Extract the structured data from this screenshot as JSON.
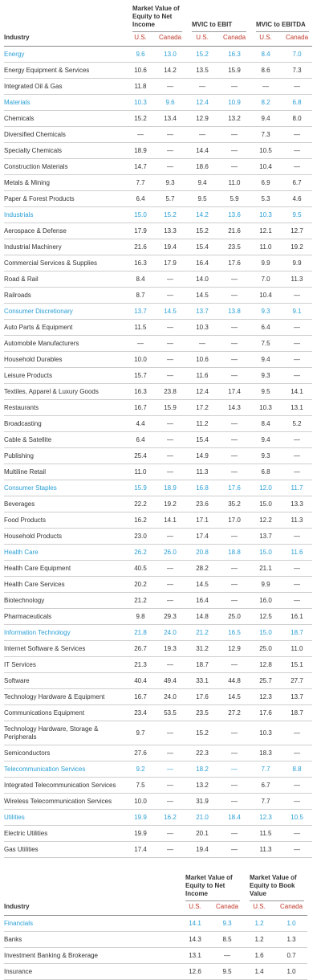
{
  "tables": [
    {
      "header": {
        "industry": "Industry",
        "groups": [
          {
            "title": "Market Value of Equity to Net Income",
            "columns": [
              "U.S.",
              "Canada"
            ]
          },
          {
            "title": "MVIC to EBIT",
            "columns": [
              "U.S.",
              "Canada"
            ]
          },
          {
            "title": "MVIC to EBITDA",
            "columns": [
              "U.S.",
              "Canada"
            ]
          }
        ]
      },
      "highlight_color": "#2a9fd6",
      "rows": [
        {
          "cells": [
            "Energy",
            "9.6",
            "13.0",
            "15.2",
            "16.3",
            "8.4",
            "7.0"
          ],
          "highlight": true
        },
        {
          "cells": [
            "Energy Equipment & Services",
            "10.6",
            "14.2",
            "13.5",
            "15.9",
            "8.6",
            "7.3"
          ]
        },
        {
          "cells": [
            "Integrated Oil & Gas",
            "11.8",
            "—",
            "—",
            "—",
            "—",
            "—"
          ]
        },
        {
          "cells": [
            "Materials",
            "10.3",
            "9.6",
            "12.4",
            "10.9",
            "8.2",
            "6.8"
          ],
          "highlight": true
        },
        {
          "cells": [
            "Chemicals",
            "15.2",
            "13.4",
            "12.9",
            "13.2",
            "9.4",
            "8.0"
          ]
        },
        {
          "cells": [
            "Diversified Chemicals",
            "—",
            "—",
            "—",
            "—",
            "7.3",
            "—"
          ]
        },
        {
          "cells": [
            "Specialty Chemicals",
            "18.9",
            "—",
            "14.4",
            "—",
            "10.5",
            "—"
          ]
        },
        {
          "cells": [
            "Construction Materials",
            "14.7",
            "—",
            "18.6",
            "—",
            "10.4",
            "—"
          ]
        },
        {
          "cells": [
            "Metals & Mining",
            "7.7",
            "9.3",
            "9.4",
            "11.0",
            "6.9",
            "6.7"
          ]
        },
        {
          "cells": [
            "Paper & Forest Products",
            "6.4",
            "5.7",
            "9.5",
            "5.9",
            "5.3",
            "4.6"
          ]
        },
        {
          "cells": [
            "Industrials",
            "15.0",
            "15.2",
            "14.2",
            "13.6",
            "10.3",
            "9.5"
          ],
          "highlight": true
        },
        {
          "cells": [
            "Aerospace & Defense",
            "17.9",
            "13.3",
            "15.2",
            "21.6",
            "12.1",
            "12.7"
          ]
        },
        {
          "cells": [
            "Industrial Machinery",
            "21.6",
            "19.4",
            "15.4",
            "23.5",
            "11.0",
            "19.2"
          ]
        },
        {
          "cells": [
            "Commercial Services & Supplies",
            "16.3",
            "17.9",
            "16.4",
            "17.6",
            "9.9",
            "9.9"
          ]
        },
        {
          "cells": [
            "Road & Rail",
            "8.4",
            "—",
            "14.0",
            "—",
            "7.0",
            "11.3"
          ]
        },
        {
          "cells": [
            "Railroads",
            "8.7",
            "—",
            "14.5",
            "—",
            "10.4",
            "—"
          ]
        },
        {
          "cells": [
            "Consumer Discretionary",
            "13.7",
            "14.5",
            "13.7",
            "13.8",
            "9.3",
            "9.1"
          ],
          "highlight": true
        },
        {
          "cells": [
            "Auto Parts & Equipment",
            "11.5",
            "—",
            "10.3",
            "—",
            "6.4",
            "—"
          ]
        },
        {
          "cells": [
            "Automobile Manufacturers",
            "—",
            "—",
            "—",
            "—",
            "7.5",
            "—"
          ]
        },
        {
          "cells": [
            "Household Durables",
            "10.0",
            "—",
            "10.6",
            "—",
            "9.4",
            "—"
          ]
        },
        {
          "cells": [
            "Leisure Products",
            "15.7",
            "—",
            "11.6",
            "—",
            "9.3",
            "—"
          ]
        },
        {
          "cells": [
            "Textiles, Apparel & Luxury Goods",
            "16.3",
            "23.8",
            "12.4",
            "17.4",
            "9.5",
            "14.1"
          ]
        },
        {
          "cells": [
            "Restaurants",
            "16.7",
            "15.9",
            "17.2",
            "14.3",
            "10.3",
            "13.1"
          ]
        },
        {
          "cells": [
            "Broadcasting",
            "4.4",
            "—",
            "11.2",
            "—",
            "8.4",
            "5.2"
          ]
        },
        {
          "cells": [
            "Cable & Satellite",
            "6.4",
            "—",
            "15.4",
            "—",
            "9.4",
            "—"
          ]
        },
        {
          "cells": [
            "Publishing",
            "25.4",
            "—",
            "14.9",
            "—",
            "9.3",
            "—"
          ]
        },
        {
          "cells": [
            "Multiline Retail",
            "11.0",
            "—",
            "11.3",
            "—",
            "6.8",
            "—"
          ]
        },
        {
          "cells": [
            "Consumer Staples",
            "15.9",
            "18.9",
            "16.8",
            "17.6",
            "12.0",
            "11.7"
          ],
          "highlight": true
        },
        {
          "cells": [
            "Beverages",
            "22.2",
            "19.2",
            "23.6",
            "35.2",
            "15.0",
            "13.3"
          ]
        },
        {
          "cells": [
            "Food Products",
            "16.2",
            "14.1",
            "17.1",
            "17.0",
            "12.2",
            "11.3"
          ]
        },
        {
          "cells": [
            "Household Products",
            "23.0",
            "—",
            "17.4",
            "—",
            "13.7",
            "—"
          ]
        },
        {
          "cells": [
            "Health Care",
            "26.2",
            "26.0",
            "20.8",
            "18.8",
            "15.0",
            "11.6"
          ],
          "highlight": true
        },
        {
          "cells": [
            "Health Care Equipment",
            "40.5",
            "—",
            "28.2",
            "—",
            "21.1",
            "—"
          ]
        },
        {
          "cells": [
            "Health Care Services",
            "20.2",
            "—",
            "14.5",
            "—",
            "9.9",
            "—"
          ]
        },
        {
          "cells": [
            "Biotechnology",
            "21.2",
            "—",
            "16.4",
            "—",
            "16.0",
            "—"
          ]
        },
        {
          "cells": [
            "Pharmaceuticals",
            "9.8",
            "29.3",
            "14.8",
            "25.0",
            "12.5",
            "16.1"
          ]
        },
        {
          "cells": [
            "Information Technology",
            "21.8",
            "24.0",
            "21.2",
            "16.5",
            "15.0",
            "18.7"
          ],
          "highlight": true
        },
        {
          "cells": [
            "Internet Software & Services",
            "26.7",
            "19.3",
            "31.2",
            "12.9",
            "25.0",
            "11.0"
          ]
        },
        {
          "cells": [
            "IT Services",
            "21.3",
            "—",
            "18.7",
            "—",
            "12.8",
            "15.1"
          ]
        },
        {
          "cells": [
            "Software",
            "40.4",
            "49.4",
            "33.1",
            "44.8",
            "25.7",
            "27.7"
          ]
        },
        {
          "cells": [
            "Technology Hardware & Equipment",
            "16.7",
            "24.0",
            "17.6",
            "14.5",
            "12.3",
            "13.7"
          ]
        },
        {
          "cells": [
            "Communications Equipment",
            "23.4",
            "53.5",
            "23.5",
            "27.2",
            "17.6",
            "18.7"
          ]
        },
        {
          "cells": [
            "Technology Hardware, Storage & Peripherals",
            "9.7",
            "—",
            "15.2",
            "—",
            "10.3",
            "—"
          ]
        },
        {
          "cells": [
            "Semiconductors",
            "27.6",
            "—",
            "22.3",
            "—",
            "18.3",
            "—"
          ]
        },
        {
          "cells": [
            "Telecommunication Services",
            "9.2",
            "—",
            "18.2",
            "—",
            "7.7",
            "8.8"
          ],
          "highlight": true
        },
        {
          "cells": [
            "Integrated Telecommunication Services",
            "7.5",
            "—",
            "13.2",
            "—",
            "6.7",
            "—"
          ]
        },
        {
          "cells": [
            "Wireless Telecommunication Services",
            "10.0",
            "—",
            "31.9",
            "—",
            "7.7",
            "—"
          ]
        },
        {
          "cells": [
            "Utilities",
            "19.9",
            "16.2",
            "21.0",
            "18.4",
            "12.3",
            "10.5"
          ],
          "highlight": true
        },
        {
          "cells": [
            "Electric Utilities",
            "19.9",
            "—",
            "20.1",
            "—",
            "11.5",
            "—"
          ]
        },
        {
          "cells": [
            "Gas Utilities",
            "17.4",
            "—",
            "19.4",
            "—",
            "11.3",
            "—"
          ]
        }
      ]
    },
    {
      "header": {
        "industry": "Industry",
        "groups": [
          {
            "title": "Market Value of Equity to Net Income",
            "columns": [
              "U.S.",
              "Canada"
            ]
          },
          {
            "title": "Market Value of Equity to Book Value",
            "columns": [
              "U.S.",
              "Canada"
            ]
          }
        ]
      },
      "highlight_color": "#2a9fd6",
      "rows": [
        {
          "cells": [
            "Financials",
            "14.1",
            "9.3",
            "1.2",
            "1.0"
          ],
          "highlight": true
        },
        {
          "cells": [
            "Banks",
            "14.3",
            "8.5",
            "1.2",
            "1.3"
          ]
        },
        {
          "cells": [
            "Investment Banking & Brokerage",
            "13.1",
            "—",
            "1.6",
            "0.7"
          ]
        },
        {
          "cells": [
            "Insurance",
            "12.6",
            "9.5",
            "1.4",
            "1.0"
          ]
        }
      ]
    }
  ]
}
